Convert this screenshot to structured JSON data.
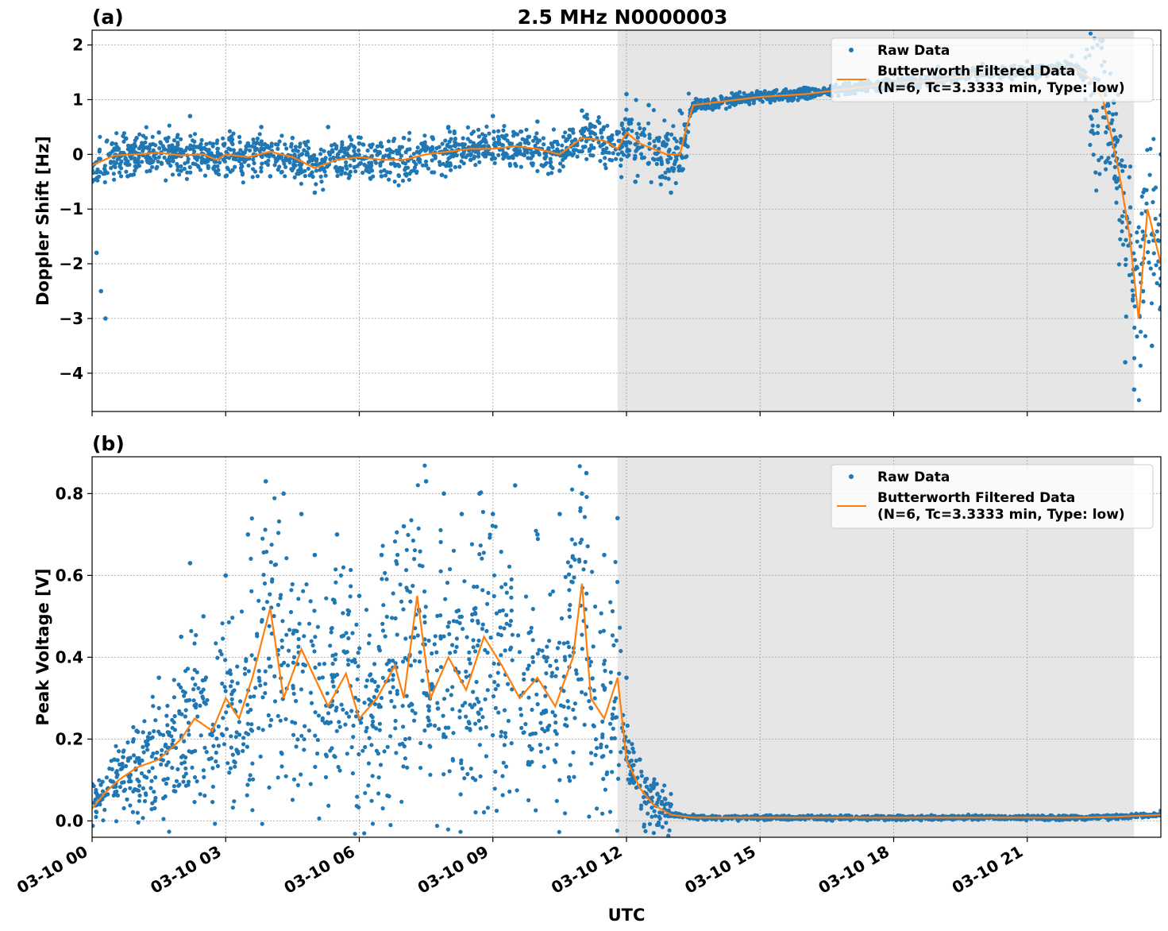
{
  "title": "2.5 MHz N0000003",
  "xlabel": "UTC",
  "xticks": [
    "03-10 00",
    "03-10 03",
    "03-10 06",
    "03-10 09",
    "03-10 12",
    "03-10 15",
    "03-10 18",
    "03-10 21"
  ],
  "legend": {
    "raw": "Raw Data",
    "filtered_line1": "Butterworth Filtered Data",
    "filtered_line2": "(N=6, Tc=3.3333 min, Type: low)"
  },
  "colors": {
    "raw": "#1f77b4",
    "filtered": "#ff7f0e",
    "shade": "#e6e6e6"
  },
  "chart_data": [
    {
      "type": "scatter",
      "panel_label": "(a)",
      "ylabel": "Doppler Shift [Hz]",
      "xlim_hours": [
        0,
        24
      ],
      "ylim": [
        -4.7,
        2.27
      ],
      "yticks": [
        2,
        1,
        0,
        -1,
        -2,
        -3,
        -4
      ],
      "ytick_labels": [
        "2",
        "1",
        "0",
        "−1",
        "−2",
        "−3",
        "−4"
      ],
      "grid": true,
      "legend_position": "upper right",
      "shaded_span_hours": [
        11.8,
        23.4
      ],
      "series": [
        {
          "name": "Butterworth Filtered Data (N=6, Tc=3.3333 min, Type: low)",
          "style": "line",
          "x_hours": [
            0,
            0.5,
            1,
            1.5,
            2,
            2.5,
            2.8,
            3,
            3.5,
            4,
            4.5,
            5,
            5.5,
            6,
            6.5,
            7,
            7.5,
            8,
            8.5,
            9,
            9.5,
            10,
            10.5,
            11,
            11.5,
            11.8,
            12,
            12.3,
            12.6,
            12.9,
            13.2,
            13.35,
            13.5,
            14,
            15,
            16,
            17,
            18,
            19,
            20,
            21,
            22,
            22.4,
            22.7,
            22.9,
            23.1,
            23.3,
            23.5,
            23.7,
            24
          ],
          "y": [
            -0.2,
            -0.02,
            0.0,
            0.03,
            -0.02,
            0.0,
            -0.1,
            0.0,
            -0.05,
            0.05,
            -0.05,
            -0.25,
            -0.1,
            -0.05,
            -0.1,
            -0.1,
            0.0,
            0.05,
            0.1,
            0.1,
            0.15,
            0.1,
            0.0,
            0.3,
            0.25,
            0.1,
            0.4,
            0.2,
            0.1,
            0.0,
            0.0,
            0.5,
            0.9,
            0.95,
            1.05,
            1.1,
            1.2,
            1.3,
            1.35,
            1.5,
            1.5,
            1.6,
            1.4,
            1.0,
            0.3,
            -0.5,
            -1.5,
            -3.0,
            -1.0,
            -2.0
          ]
        },
        {
          "name": "Raw Data",
          "style": "points",
          "x_hours": [
            0,
            0.1,
            0.2,
            0.3,
            0.5,
            0.8,
            1,
            1.3,
            1.5,
            2,
            2.2,
            2.5,
            3,
            3.5,
            3.8,
            4,
            4.5,
            5,
            5.3,
            5.5,
            6,
            6.5,
            7,
            7.5,
            8,
            8.5,
            9,
            9.5,
            10,
            10.5,
            11,
            11.5,
            12,
            12.2,
            12.5,
            12.8,
            13,
            13.2,
            13.5,
            14,
            15,
            16,
            17,
            18,
            19,
            20,
            21,
            22,
            22.4,
            22.8,
            23,
            23.2,
            23.4,
            23.6,
            23.8,
            24
          ],
          "y": [
            -0.5,
            -1.8,
            -2.5,
            -3.0,
            0.1,
            -0.4,
            0.3,
            -0.3,
            0.4,
            -0.3,
            0.7,
            0.0,
            -0.4,
            0.2,
            0.5,
            -0.4,
            0.3,
            -0.7,
            0.5,
            -0.3,
            0.2,
            -0.4,
            0.3,
            -0.2,
            0.5,
            -0.1,
            0.7,
            0.0,
            0.6,
            -0.3,
            0.8,
            0.2,
            1.1,
            -0.5,
            0.9,
            -0.4,
            -0.7,
            0.8,
            0.8,
            0.9,
            1.0,
            1.15,
            1.3,
            1.45,
            1.6,
            1.65,
            1.7,
            1.8,
            1.3,
            0.5,
            -0.5,
            -3.8,
            -4.3,
            -2.5,
            -3.5,
            0.0
          ]
        }
      ]
    },
    {
      "type": "scatter",
      "panel_label": "(b)",
      "ylabel": "Peak Voltage [V]",
      "xlabel": "UTC",
      "xlim_hours": [
        0,
        24
      ],
      "ylim": [
        -0.04,
        0.89
      ],
      "yticks": [
        0.8,
        0.6,
        0.4,
        0.2,
        0.0
      ],
      "ytick_labels": [
        "0.8",
        "0.6",
        "0.4",
        "0.2",
        "0.0"
      ],
      "grid": true,
      "legend_position": "upper right",
      "shaded_span_hours": [
        11.8,
        23.4
      ],
      "series": [
        {
          "name": "Butterworth Filtered Data (N=6, Tc=3.3333 min, Type: low)",
          "style": "line",
          "x_hours": [
            0,
            0.3,
            0.6,
            1,
            1.5,
            2,
            2.3,
            2.7,
            3,
            3.3,
            3.6,
            4,
            4.3,
            4.7,
            5,
            5.3,
            5.7,
            6,
            6.4,
            6.8,
            7,
            7.3,
            7.6,
            8,
            8.4,
            8.8,
            9.2,
            9.6,
            10,
            10.4,
            10.8,
            11,
            11.2,
            11.5,
            11.8,
            12,
            12.3,
            12.6,
            13,
            13.5,
            14,
            16,
            18,
            20,
            22,
            23,
            24
          ],
          "y": [
            0.03,
            0.07,
            0.1,
            0.13,
            0.15,
            0.2,
            0.25,
            0.22,
            0.3,
            0.25,
            0.35,
            0.52,
            0.3,
            0.42,
            0.35,
            0.28,
            0.36,
            0.25,
            0.3,
            0.38,
            0.3,
            0.55,
            0.3,
            0.4,
            0.32,
            0.45,
            0.38,
            0.3,
            0.35,
            0.28,
            0.4,
            0.58,
            0.3,
            0.25,
            0.35,
            0.15,
            0.08,
            0.04,
            0.015,
            0.008,
            0.008,
            0.008,
            0.008,
            0.008,
            0.008,
            0.01,
            0.015
          ]
        },
        {
          "name": "Raw Data",
          "style": "points",
          "x_hours": [
            0,
            0.5,
            1,
            1.5,
            2,
            2.2,
            2.5,
            3,
            3.5,
            3.9,
            4.3,
            4.7,
            5,
            5.5,
            6,
            6.5,
            7,
            7.5,
            7.9,
            8.3,
            8.7,
            9,
            9.5,
            10,
            10.5,
            11,
            11.1,
            11.5,
            11.8,
            12,
            12.3,
            12.6,
            13,
            13.5,
            14,
            16,
            18,
            20,
            22,
            23,
            24
          ],
          "y": [
            0.09,
            0.15,
            0.22,
            0.35,
            0.45,
            0.63,
            0.5,
            0.6,
            0.7,
            0.83,
            0.8,
            0.75,
            0.65,
            0.7,
            0.55,
            0.65,
            0.72,
            0.83,
            0.8,
            0.75,
            0.8,
            0.75,
            0.82,
            0.7,
            0.75,
            0.8,
            0.85,
            0.65,
            0.74,
            0.35,
            0.15,
            0.08,
            0.04,
            0.015,
            0.01,
            0.01,
            0.01,
            0.01,
            0.01,
            0.015,
            0.025
          ]
        }
      ]
    }
  ]
}
